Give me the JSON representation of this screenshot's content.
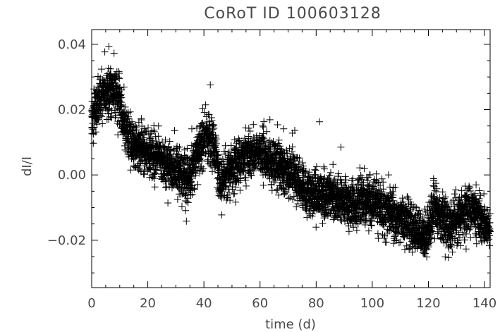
{
  "chart_data": {
    "type": "scatter",
    "marker": "plus",
    "title": "CoRoT ID 100603128",
    "xlabel": "time (d)",
    "ylabel": "dI/I",
    "xlim": [
      0,
      142
    ],
    "ylim": [
      -0.0345,
      0.0445
    ],
    "xticks": [
      0,
      20,
      40,
      60,
      80,
      100,
      120,
      140
    ],
    "xtick_labels": [
      "0",
      "20",
      "40",
      "60",
      "80",
      "100",
      "120",
      "140"
    ],
    "yticks": [
      -0.02,
      0.0,
      0.02,
      0.04
    ],
    "ytick_labels": [
      "−0.02",
      "0.00",
      "0.02",
      "0.04"
    ],
    "grid": false,
    "series": [
      {
        "color": "#000000",
        "trend_x": [
          0,
          2,
          4,
          6,
          8,
          10,
          12,
          15,
          20,
          25,
          30,
          33,
          35,
          38,
          40,
          42,
          44,
          46,
          48,
          52,
          56,
          60,
          64,
          68,
          72,
          76,
          80,
          85,
          90,
          95,
          100,
          105,
          110,
          115,
          118,
          120,
          122,
          125,
          128,
          132,
          135,
          138,
          142
        ],
        "trend_y": [
          0.018,
          0.021,
          0.024,
          0.026,
          0.026,
          0.023,
          0.013,
          0.009,
          0.007,
          0.004,
          0.001,
          -0.001,
          -0.001,
          0.008,
          0.011,
          0.012,
          0.007,
          -0.004,
          0.0,
          0.004,
          0.006,
          0.007,
          0.004,
          0.002,
          0.0,
          -0.005,
          -0.006,
          -0.007,
          -0.008,
          -0.009,
          -0.009,
          -0.011,
          -0.013,
          -0.016,
          -0.019,
          -0.017,
          -0.01,
          -0.013,
          -0.016,
          -0.012,
          -0.01,
          -0.013,
          -0.017
        ],
        "scatter_sd": 0.0035,
        "points_drawn": 4500
      }
    ]
  }
}
